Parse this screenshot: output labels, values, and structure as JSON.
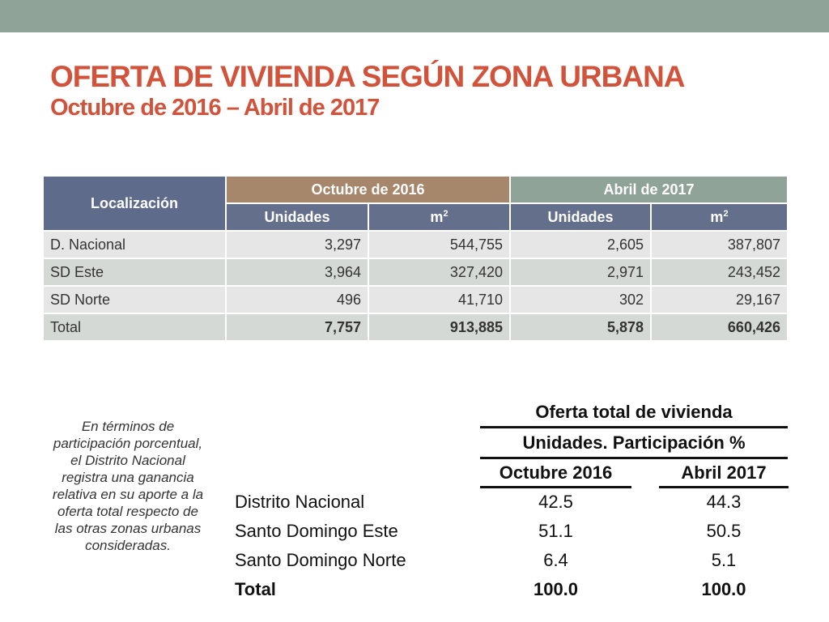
{
  "title": {
    "main": "OFERTA DE VIVIENDA SEGÚN ZONA URBANA",
    "sub": "Octubre de 2016 – Abril de 2017"
  },
  "colors": {
    "title": "#d2533b",
    "top_bar": "#8fa398",
    "header_localizacion": "#5f6b8a",
    "header_octubre": "#a6876c",
    "header_abril": "#8fa398"
  },
  "table1": {
    "header_localizacion": "Localización",
    "header_octubre": "Octubre de 2016",
    "header_abril": "Abril de 2017",
    "sub_unidades": "Unidades",
    "sub_m": "m",
    "sub_m_exp": "2",
    "rows": [
      {
        "loc": "D. Nacional",
        "oct_u": "3,297",
        "oct_m2": "544,755",
        "abr_u": "2,605",
        "abr_m2": "387,807"
      },
      {
        "loc": "SD Este",
        "oct_u": "3,964",
        "oct_m2": "327,420",
        "abr_u": "2,971",
        "abr_m2": "243,452"
      },
      {
        "loc": "SD Norte",
        "oct_u": "496",
        "oct_m2": "41,710",
        "abr_u": "302",
        "abr_m2": "29,167"
      },
      {
        "loc": "Total",
        "oct_u": "7,757",
        "oct_m2": "913,885",
        "abr_u": "5,878",
        "abr_m2": "660,426"
      }
    ]
  },
  "note": "En términos de participación porcentual, el Distrito Nacional registra una ganancia relativa en su aporte a la oferta total respecto de las otras zonas urbanas consideradas.",
  "table2": {
    "title": "Oferta total de vivienda",
    "subtitle": "Unidades. Participación %",
    "col1": "Octubre 2016",
    "col2": "Abril 2017",
    "rows": [
      {
        "label": "Distrito Nacional",
        "v1": "42.5",
        "v2": "44.3"
      },
      {
        "label": "Santo Domingo Este",
        "v1": "51.1",
        "v2": "50.5"
      },
      {
        "label": "Santo Domingo Norte",
        "v1": "6.4",
        "v2": "5.1"
      },
      {
        "label": "Total",
        "v1": "100.0",
        "v2": "100.0"
      }
    ]
  }
}
